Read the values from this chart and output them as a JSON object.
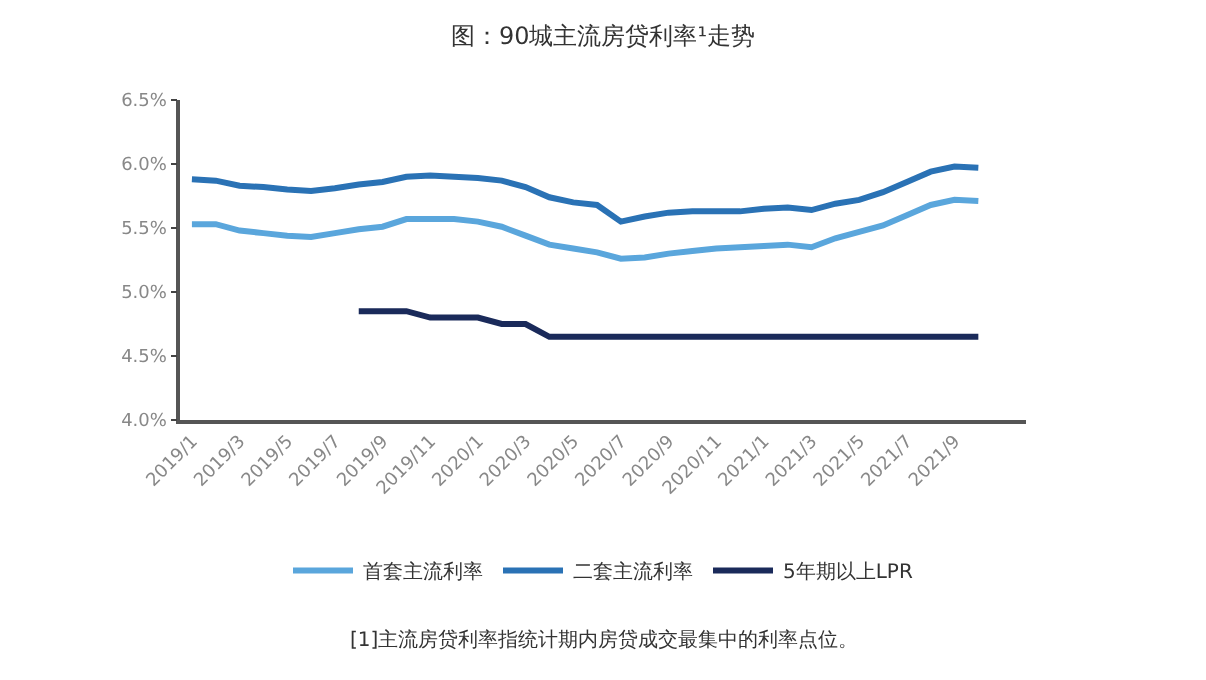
{
  "chart_data": {
    "type": "line",
    "title": "图：90城主流房贷利率¹走势",
    "categories": [
      "2019/1",
      null,
      "2019/3",
      null,
      "2019/5",
      null,
      "2019/7",
      null,
      "2019/9",
      null,
      "2019/11",
      null,
      "2020/1",
      null,
      "2020/3",
      null,
      "2020/5",
      null,
      "2020/7",
      null,
      "2020/9",
      null,
      "2020/11",
      null,
      "2021/1",
      null,
      "2021/3",
      null,
      "2021/5",
      null,
      "2021/7",
      null,
      "2021/9",
      null
    ],
    "series": [
      {
        "name": "首套主流利率",
        "color": "#5aa6dc",
        "values": [
          5.53,
          5.53,
          5.48,
          5.46,
          5.44,
          5.43,
          5.46,
          5.49,
          5.51,
          5.57,
          5.57,
          5.57,
          5.55,
          5.51,
          5.44,
          5.37,
          5.34,
          5.31,
          5.26,
          5.27,
          5.3,
          5.32,
          5.34,
          5.35,
          5.36,
          5.37,
          5.35,
          5.42,
          5.47,
          5.52,
          5.6,
          5.68,
          5.72,
          5.71
        ]
      },
      {
        "name": "二套主流利率",
        "color": "#2a72b5",
        "values": [
          5.88,
          5.87,
          5.83,
          5.82,
          5.8,
          5.79,
          5.81,
          5.84,
          5.86,
          5.9,
          5.91,
          5.9,
          5.89,
          5.87,
          5.82,
          5.74,
          5.7,
          5.68,
          5.55,
          5.59,
          5.62,
          5.63,
          5.63,
          5.63,
          5.65,
          5.66,
          5.64,
          5.69,
          5.72,
          5.78,
          5.86,
          5.94,
          5.98,
          5.97
        ]
      },
      {
        "name": "5年期以上LPR",
        "color": "#1a2a5a",
        "values": [
          null,
          null,
          null,
          null,
          null,
          null,
          null,
          4.85,
          4.85,
          4.85,
          4.8,
          4.8,
          4.8,
          4.75,
          4.75,
          4.65,
          4.65,
          4.65,
          4.65,
          4.65,
          4.65,
          4.65,
          4.65,
          4.65,
          4.65,
          4.65,
          4.65,
          4.65,
          4.65,
          4.65,
          4.65,
          4.65,
          4.65,
          4.65
        ]
      }
    ],
    "ylim": [
      4.0,
      6.5
    ],
    "yticks": [
      {
        "value": 4.0,
        "label": "4.0%"
      },
      {
        "value": 4.5,
        "label": "4.5%"
      },
      {
        "value": 5.0,
        "label": "5.0%"
      },
      {
        "value": 5.5,
        "label": "5.5%"
      },
      {
        "value": 6.0,
        "label": "6.0%"
      },
      {
        "value": 6.5,
        "label": "6.5%"
      }
    ],
    "legend": "bottom",
    "marker": "none",
    "line_style": "solid",
    "annotations": [
      "[1]主流房贷利率指统计期内房贷成交最集中的利率点位。"
    ]
  }
}
